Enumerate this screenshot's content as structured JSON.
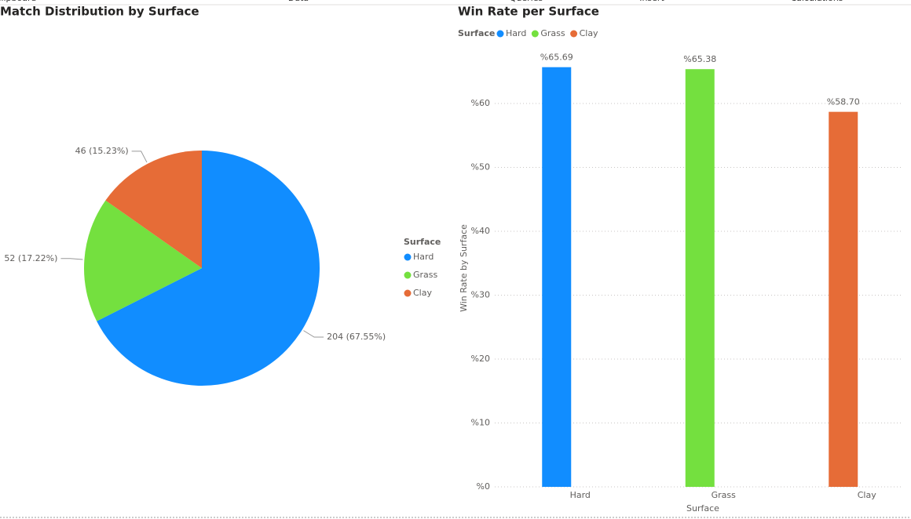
{
  "ribbon": [
    "Clipboard",
    "Data",
    "Queries",
    "Insert",
    "Calculations"
  ],
  "chart_data": [
    {
      "type": "pie",
      "title": "Match Distribution by Surface",
      "categories": [
        "Hard",
        "Grass",
        "Clay"
      ],
      "values": [
        204,
        52,
        46
      ],
      "value_labels": [
        "204 (67.55%)",
        "52 (17.22%)",
        "46 (15.23%)"
      ],
      "colors": [
        "#118dff",
        "#74e03f",
        "#e66c37"
      ],
      "legend_title": "Surface"
    },
    {
      "type": "bar",
      "title": "Win Rate per Surface",
      "categories": [
        "Hard",
        "Grass",
        "Clay"
      ],
      "values": [
        65.69,
        65.38,
        58.7
      ],
      "value_labels": [
        "%65.69",
        "%65.38",
        "%58.70"
      ],
      "colors": [
        "#118dff",
        "#74e03f",
        "#e66c37"
      ],
      "legend_title": "Surface",
      "x_label": "Surface",
      "y_label": "Win Rate by Surface",
      "ylim": [
        0,
        67
      ],
      "yticks": [
        {
          "value": 0,
          "label": "%0"
        },
        {
          "value": 10,
          "label": "%10"
        },
        {
          "value": 20,
          "label": "%20"
        },
        {
          "value": 30,
          "label": "%30"
        },
        {
          "value": 40,
          "label": "%40"
        },
        {
          "value": 50,
          "label": "%50"
        },
        {
          "value": 60,
          "label": "%60"
        }
      ],
      "grid": true
    }
  ]
}
